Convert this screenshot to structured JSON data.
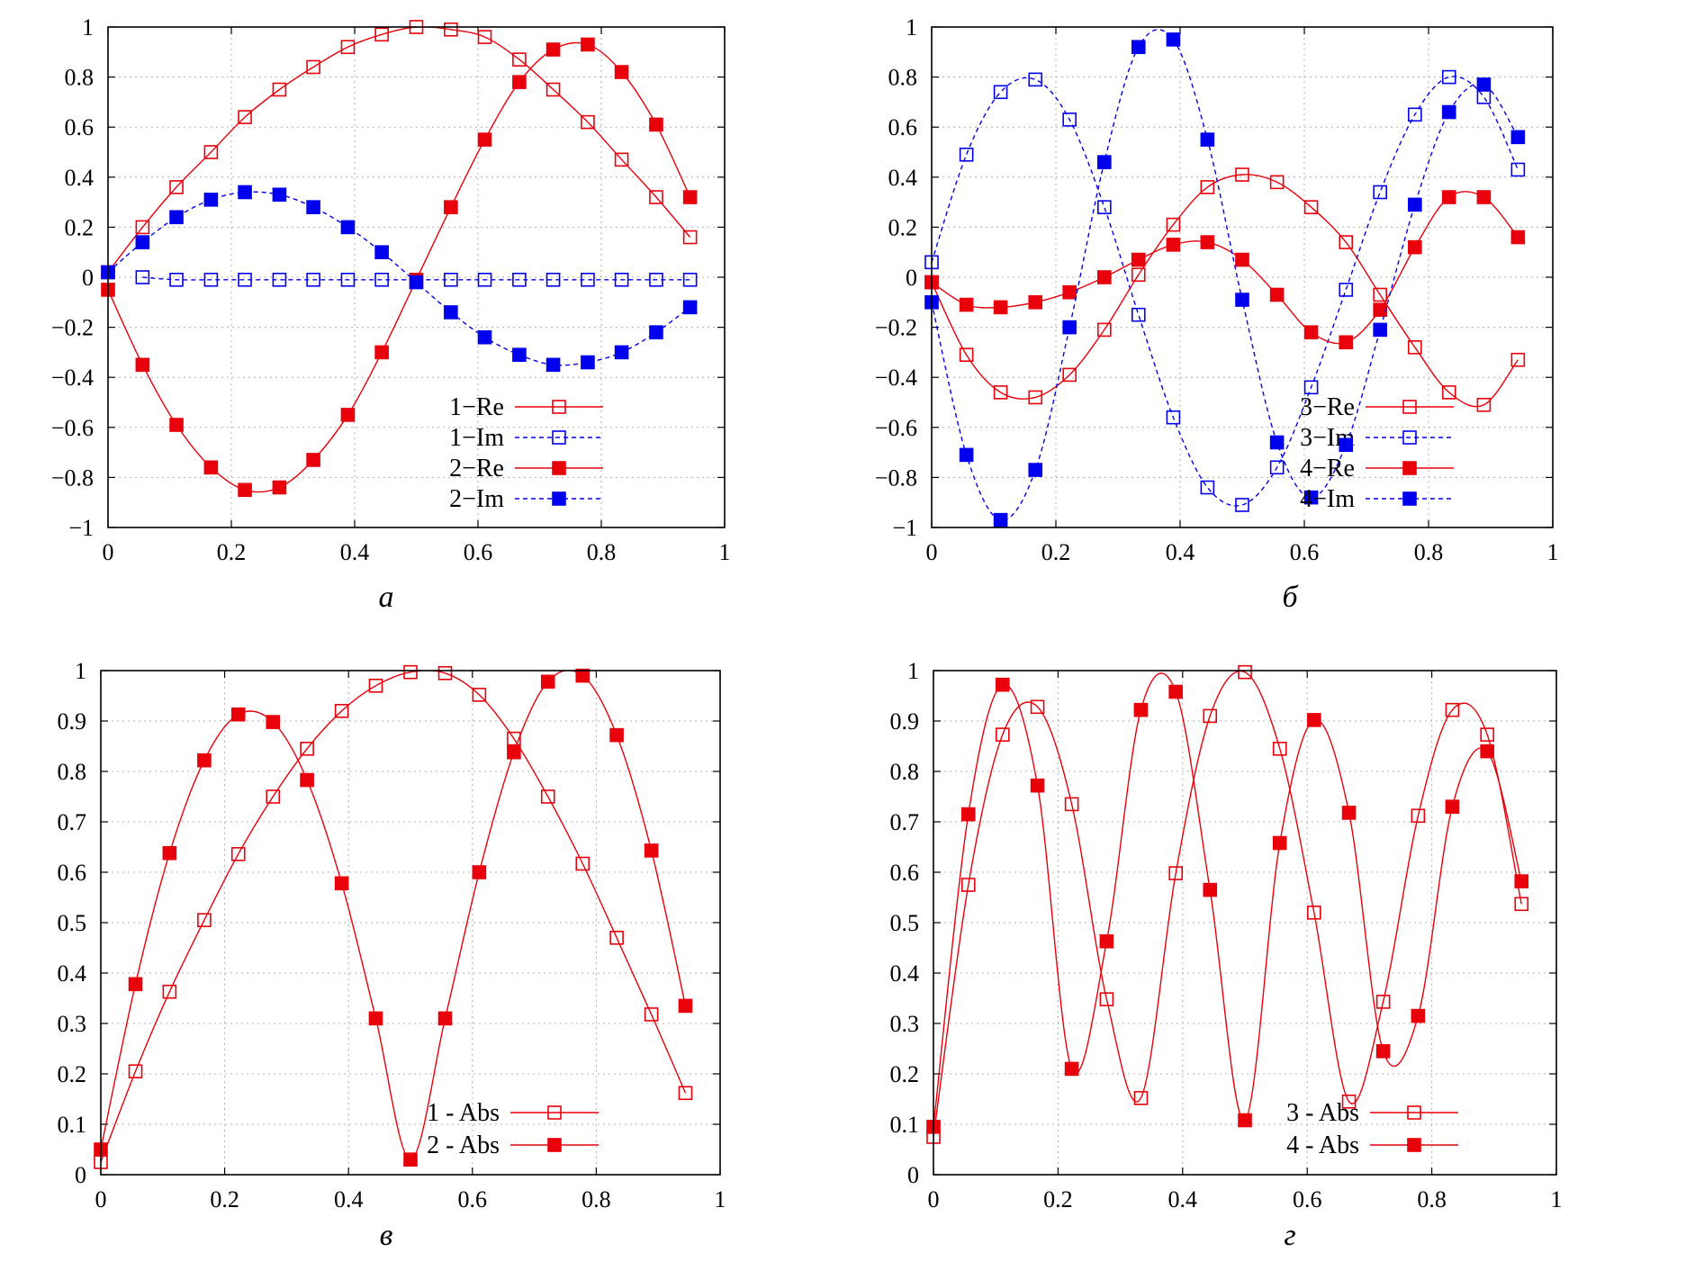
{
  "colors": {
    "re": "#e8000b",
    "im": "#0000ee",
    "grid": "#b0b0b0",
    "axis": "#000000"
  },
  "chart_data": [
    {
      "id": "a",
      "type": "line",
      "caption": "а",
      "xlim": [
        0,
        1
      ],
      "ylim": [
        -1,
        1
      ],
      "xticks": [
        "0",
        "0.2",
        "0.4",
        "0.6",
        "0.8",
        "1"
      ],
      "xtick_values": [
        0,
        0.2,
        0.4,
        0.6,
        0.8,
        1
      ],
      "yticks": [
        "−1",
        "−0.8",
        "−0.6",
        "−0.4",
        "−0.2",
        "0",
        "0.2",
        "0.4",
        "0.6",
        "0.8",
        "1"
      ],
      "ytick_values": [
        -1,
        -0.8,
        -0.6,
        -0.4,
        -0.2,
        0,
        0.2,
        0.4,
        0.6,
        0.8,
        1
      ],
      "grid": true,
      "legend_position": "bottom-right",
      "series": [
        {
          "name": "1−Re",
          "color": "re",
          "dash": false,
          "filled": false,
          "x": [
            0,
            0.056,
            0.111,
            0.167,
            0.222,
            0.278,
            0.333,
            0.389,
            0.444,
            0.5,
            0.556,
            0.611,
            0.667,
            0.722,
            0.778,
            0.833,
            0.889,
            0.944
          ],
          "y": [
            0.02,
            0.2,
            0.36,
            0.5,
            0.64,
            0.75,
            0.84,
            0.92,
            0.97,
            1.0,
            0.99,
            0.96,
            0.87,
            0.75,
            0.62,
            0.47,
            0.32,
            0.16
          ]
        },
        {
          "name": "1−Im",
          "color": "im",
          "dash": true,
          "filled": false,
          "x": [
            0.056,
            0.111,
            0.167,
            0.222,
            0.278,
            0.333,
            0.389,
            0.444,
            0.556,
            0.611,
            0.667,
            0.722,
            0.778,
            0.833,
            0.889,
            0.944
          ],
          "y": [
            0,
            -0.01,
            -0.01,
            -0.01,
            -0.01,
            -0.01,
            -0.01,
            -0.01,
            -0.01,
            -0.01,
            -0.01,
            -0.01,
            -0.01,
            -0.01,
            -0.01,
            -0.01
          ]
        },
        {
          "name": "2−Re",
          "color": "re",
          "dash": false,
          "filled": true,
          "x": [
            0,
            0.056,
            0.111,
            0.167,
            0.222,
            0.278,
            0.333,
            0.389,
            0.444,
            0.5,
            0.556,
            0.611,
            0.667,
            0.722,
            0.778,
            0.833,
            0.889,
            0.944
          ],
          "y": [
            -0.05,
            -0.35,
            -0.59,
            -0.76,
            -0.85,
            -0.84,
            -0.73,
            -0.55,
            -0.3,
            -0.01,
            0.28,
            0.55,
            0.78,
            0.91,
            0.93,
            0.82,
            0.61,
            0.32
          ]
        },
        {
          "name": "2−Im",
          "color": "im",
          "dash": true,
          "filled": true,
          "x": [
            0,
            0.056,
            0.111,
            0.167,
            0.222,
            0.278,
            0.333,
            0.389,
            0.444,
            0.5,
            0.556,
            0.611,
            0.667,
            0.722,
            0.778,
            0.833,
            0.889,
            0.944
          ],
          "y": [
            0.02,
            0.14,
            0.24,
            0.31,
            0.34,
            0.33,
            0.28,
            0.2,
            0.1,
            -0.02,
            -0.14,
            -0.24,
            -0.31,
            -0.35,
            -0.34,
            -0.3,
            -0.22,
            -0.12
          ]
        }
      ]
    },
    {
      "id": "b",
      "type": "line",
      "caption": "б",
      "xlim": [
        0,
        1
      ],
      "ylim": [
        -1,
        1
      ],
      "xticks": [
        "0",
        "0.2",
        "0.4",
        "0.6",
        "0.8",
        "1"
      ],
      "xtick_values": [
        0,
        0.2,
        0.4,
        0.6,
        0.8,
        1
      ],
      "yticks": [
        "−1",
        "−0.8",
        "−0.6",
        "−0.4",
        "−0.2",
        "0",
        "0.2",
        "0.4",
        "0.6",
        "0.8",
        "1"
      ],
      "ytick_values": [
        -1,
        -0.8,
        -0.6,
        -0.4,
        -0.2,
        0,
        0.2,
        0.4,
        0.6,
        0.8,
        1
      ],
      "grid": true,
      "legend_position": "bottom-right",
      "series": [
        {
          "name": "3−Re",
          "color": "re",
          "dash": false,
          "filled": false,
          "x": [
            0,
            0.056,
            0.111,
            0.167,
            0.222,
            0.278,
            0.333,
            0.389,
            0.444,
            0.5,
            0.556,
            0.611,
            0.667,
            0.722,
            0.778,
            0.833,
            0.889,
            0.944
          ],
          "y": [
            -0.02,
            -0.31,
            -0.46,
            -0.48,
            -0.39,
            -0.21,
            0.01,
            0.21,
            0.36,
            0.41,
            0.38,
            0.28,
            0.14,
            -0.07,
            -0.28,
            -0.46,
            -0.51,
            -0.33
          ]
        },
        {
          "name": "3−Im",
          "color": "im",
          "dash": true,
          "filled": false,
          "x": [
            0,
            0.056,
            0.111,
            0.167,
            0.222,
            0.278,
            0.333,
            0.389,
            0.444,
            0.5,
            0.556,
            0.611,
            0.667,
            0.722,
            0.778,
            0.833,
            0.889,
            0.944
          ],
          "y": [
            0.06,
            0.49,
            0.74,
            0.79,
            0.63,
            0.28,
            -0.15,
            -0.56,
            -0.84,
            -0.91,
            -0.76,
            -0.44,
            -0.05,
            0.34,
            0.65,
            0.8,
            0.72,
            0.43
          ]
        },
        {
          "name": "4−Re",
          "color": "re",
          "dash": false,
          "filled": true,
          "x": [
            0,
            0.056,
            0.111,
            0.167,
            0.222,
            0.278,
            0.333,
            0.389,
            0.444,
            0.5,
            0.556,
            0.611,
            0.667,
            0.722,
            0.778,
            0.833,
            0.889,
            0.944
          ],
          "y": [
            -0.02,
            -0.11,
            -0.12,
            -0.1,
            -0.06,
            0.0,
            0.07,
            0.13,
            0.14,
            0.07,
            -0.07,
            -0.22,
            -0.26,
            -0.13,
            0.12,
            0.32,
            0.32,
            0.16
          ]
        },
        {
          "name": "4−Im",
          "color": "im",
          "dash": true,
          "filled": true,
          "x": [
            0,
            0.056,
            0.111,
            0.167,
            0.222,
            0.278,
            0.333,
            0.389,
            0.444,
            0.5,
            0.556,
            0.611,
            0.667,
            0.722,
            0.778,
            0.833,
            0.889,
            0.944
          ],
          "y": [
            -0.1,
            -0.71,
            -0.97,
            -0.77,
            -0.2,
            0.46,
            0.92,
            0.95,
            0.55,
            -0.09,
            -0.66,
            -0.88,
            -0.67,
            -0.21,
            0.29,
            0.66,
            0.77,
            0.56
          ]
        }
      ]
    },
    {
      "id": "c",
      "type": "line",
      "caption": "в",
      "xlim": [
        0,
        1
      ],
      "ylim": [
        0,
        1
      ],
      "xticks": [
        "0",
        "0.2",
        "0.4",
        "0.6",
        "0.8",
        "1"
      ],
      "xtick_values": [
        0,
        0.2,
        0.4,
        0.6,
        0.8,
        1
      ],
      "yticks": [
        "0",
        "0.1",
        "0.2",
        "0.3",
        "0.4",
        "0.5",
        "0.6",
        "0.7",
        "0.8",
        "0.9",
        "1"
      ],
      "ytick_values": [
        0,
        0.1,
        0.2,
        0.3,
        0.4,
        0.5,
        0.6,
        0.7,
        0.8,
        0.9,
        1
      ],
      "grid": true,
      "legend_position": "bottom-right",
      "series": [
        {
          "name": "1 - Abs",
          "color": "re",
          "dash": false,
          "filled": false,
          "x": [
            0,
            0.056,
            0.111,
            0.167,
            0.222,
            0.278,
            0.333,
            0.389,
            0.444,
            0.5,
            0.556,
            0.611,
            0.667,
            0.722,
            0.778,
            0.833,
            0.889,
            0.944
          ],
          "y": [
            0.025,
            0.205,
            0.363,
            0.505,
            0.636,
            0.75,
            0.845,
            0.92,
            0.97,
            0.997,
            0.995,
            0.952,
            0.865,
            0.75,
            0.617,
            0.47,
            0.318,
            0.162
          ]
        },
        {
          "name": "2 - Abs",
          "color": "re",
          "dash": false,
          "filled": true,
          "x": [
            0,
            0.056,
            0.111,
            0.167,
            0.222,
            0.278,
            0.333,
            0.389,
            0.444,
            0.5,
            0.556,
            0.611,
            0.667,
            0.722,
            0.778,
            0.833,
            0.889,
            0.944
          ],
          "y": [
            0.05,
            0.378,
            0.638,
            0.822,
            0.913,
            0.898,
            0.783,
            0.578,
            0.31,
            0.03,
            0.31,
            0.6,
            0.838,
            0.978,
            0.99,
            0.872,
            0.643,
            0.335
          ]
        }
      ]
    },
    {
      "id": "d",
      "type": "line",
      "caption": "г",
      "xlim": [
        0,
        1
      ],
      "ylim": [
        0,
        1
      ],
      "xticks": [
        "0",
        "0.2",
        "0.4",
        "0.6",
        "0.8",
        "1"
      ],
      "xtick_values": [
        0,
        0.2,
        0.4,
        0.6,
        0.8,
        1
      ],
      "yticks": [
        "0",
        "0.1",
        "0.2",
        "0.3",
        "0.4",
        "0.5",
        "0.6",
        "0.7",
        "0.8",
        "0.9",
        "1"
      ],
      "ytick_values": [
        0,
        0.1,
        0.2,
        0.3,
        0.4,
        0.5,
        0.6,
        0.7,
        0.8,
        0.9,
        1
      ],
      "grid": true,
      "legend_position": "bottom-right",
      "series": [
        {
          "name": "3 - Abs",
          "color": "re",
          "dash": false,
          "filled": false,
          "x": [
            0,
            0.056,
            0.111,
            0.167,
            0.222,
            0.278,
            0.333,
            0.389,
            0.444,
            0.5,
            0.556,
            0.611,
            0.667,
            0.722,
            0.778,
            0.833,
            0.889,
            0.944
          ],
          "y": [
            0.075,
            0.575,
            0.873,
            0.928,
            0.735,
            0.348,
            0.152,
            0.598,
            0.91,
            0.997,
            0.845,
            0.52,
            0.145,
            0.343,
            0.712,
            0.922,
            0.873,
            0.537
          ]
        },
        {
          "name": "4 - Abs",
          "color": "re",
          "dash": false,
          "filled": true,
          "x": [
            0,
            0.056,
            0.111,
            0.167,
            0.222,
            0.278,
            0.333,
            0.389,
            0.444,
            0.5,
            0.556,
            0.611,
            0.667,
            0.722,
            0.778,
            0.833,
            0.889,
            0.944
          ],
          "y": [
            0.095,
            0.715,
            0.972,
            0.772,
            0.21,
            0.463,
            0.922,
            0.958,
            0.565,
            0.108,
            0.658,
            0.902,
            0.718,
            0.245,
            0.315,
            0.73,
            0.84,
            0.582
          ]
        }
      ]
    }
  ]
}
